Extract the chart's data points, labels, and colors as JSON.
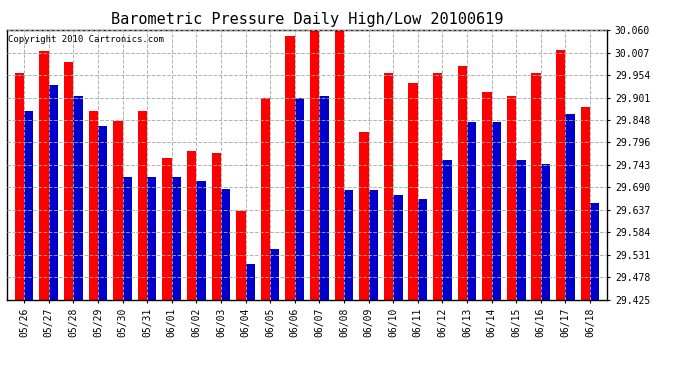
{
  "title": "Barometric Pressure Daily High/Low 20100619",
  "copyright": "Copyright 2010 Cartronics.com",
  "dates": [
    "05/26",
    "05/27",
    "05/28",
    "05/29",
    "05/30",
    "05/31",
    "06/01",
    "06/02",
    "06/03",
    "06/04",
    "06/05",
    "06/06",
    "06/07",
    "06/08",
    "06/09",
    "06/10",
    "06/11",
    "06/12",
    "06/13",
    "06/14",
    "06/15",
    "06/16",
    "06/17",
    "06/18"
  ],
  "highs": [
    29.96,
    30.01,
    29.985,
    29.87,
    29.845,
    29.87,
    29.76,
    29.775,
    29.77,
    29.635,
    29.9,
    30.045,
    30.06,
    30.075,
    29.82,
    29.96,
    29.935,
    29.96,
    29.975,
    29.915,
    29.905,
    29.958,
    30.012,
    29.878
  ],
  "lows": [
    29.87,
    29.93,
    29.905,
    29.835,
    29.715,
    29.715,
    29.715,
    29.705,
    29.685,
    29.51,
    29.545,
    29.9,
    29.905,
    29.683,
    29.683,
    29.672,
    29.662,
    29.754,
    29.843,
    29.843,
    29.754,
    29.744,
    29.862,
    29.652
  ],
  "high_color": "#ff0000",
  "low_color": "#0000cc",
  "bg_color": "#ffffff",
  "grid_color": "#aaaaaa",
  "ylim_min": 29.425,
  "ylim_max": 30.06,
  "yticks": [
    29.425,
    29.478,
    29.531,
    29.584,
    29.637,
    29.69,
    29.743,
    29.796,
    29.848,
    29.901,
    29.954,
    30.007,
    30.06
  ],
  "bar_width": 0.38,
  "title_fontsize": 11,
  "copyright_fontsize": 6.5,
  "tick_fontsize": 7
}
